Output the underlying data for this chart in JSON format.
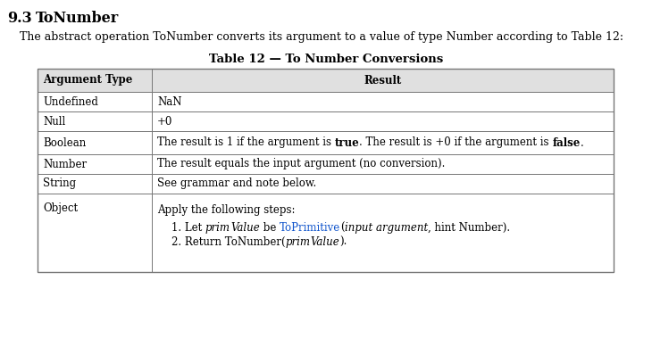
{
  "section_number": "9.3",
  "section_title": "ToNumber",
  "intro_text": "The abstract operation ToNumber converts its argument to a value of type Number according to Table 12:",
  "table_title": "Table 12 — To Number Conversions",
  "header": [
    "Argument Type",
    "Result"
  ],
  "object_main": "Apply the following steps:",
  "link_color": "#1155cc",
  "header_bg": "#e0e0e0",
  "row_bg": "#ffffff",
  "border_color": "#777777",
  "text_color": "#000000",
  "bg_color": "#ffffff",
  "font_size": 8.5,
  "section_font_size": 11.5,
  "intro_font_size": 9,
  "table_title_font_size": 9.5
}
